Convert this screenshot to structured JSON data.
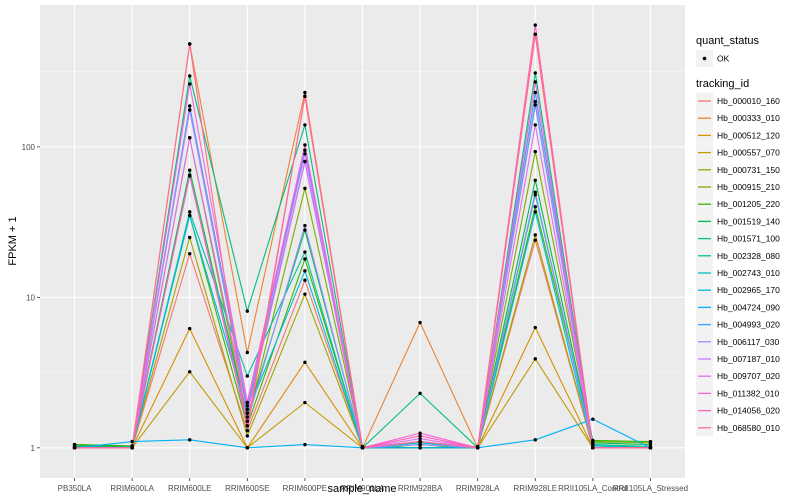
{
  "chart_data": {
    "type": "line",
    "title": "",
    "xlabel": "sample_name",
    "ylabel": "FPKM + 1",
    "y_scale": "log10",
    "ylim": [
      0.63,
      877
    ],
    "y_ticks": [
      1,
      10,
      100
    ],
    "y_tick_labels": [
      "1",
      "10",
      "100"
    ],
    "grid": true,
    "legend_placement": "right",
    "categories": [
      "PB350LA",
      "RRIM600LA",
      "RRIM600LE",
      "RRIM600SE",
      "RRIM600PE",
      "RRIM901LA",
      "RRIM928BA",
      "RRIM928LA",
      "RRIM928LE",
      "RRII105LA_Control",
      "RRII105LA_Stressed"
    ],
    "legend_shape": {
      "title": "quant_status",
      "entries": [
        "OK"
      ]
    },
    "legend_color_title": "tracking_id",
    "series": [
      {
        "name": "Hb_000010_160",
        "color": "#F8766D",
        "values": [
          1.0,
          1.0,
          19.5,
          1.3,
          13,
          1.0,
          1.05,
          1.0,
          24,
          1.0,
          1.0
        ]
      },
      {
        "name": "Hb_000333_010",
        "color": "#EA8331",
        "values": [
          1.0,
          1.0,
          483,
          4.3,
          230,
          1.0,
          6.8,
          1.0,
          560,
          1.0,
          1.0
        ]
      },
      {
        "name": "Hb_000512_120",
        "color": "#D89000",
        "values": [
          1.0,
          1.0,
          6.2,
          1.0,
          3.7,
          1.0,
          1.0,
          1.0,
          6.3,
          1.0,
          1.0
        ]
      },
      {
        "name": "Hb_000557_070",
        "color": "#C09B00",
        "values": [
          1.0,
          1.0,
          3.2,
          1.0,
          2.0,
          1.0,
          1.0,
          1.0,
          3.9,
          1.0,
          1.0
        ]
      },
      {
        "name": "Hb_000731_150",
        "color": "#A3A500",
        "values": [
          1.0,
          1.0,
          25,
          1.2,
          10.5,
          1.0,
          1.0,
          1.0,
          26,
          1.0,
          1.0
        ]
      },
      {
        "name": "Hb_000915_210",
        "color": "#7CAE00",
        "values": [
          1.05,
          1.02,
          115,
          1.5,
          53,
          1.02,
          1.0,
          1.02,
          93,
          1.1,
          1.08
        ]
      },
      {
        "name": "Hb_001205_220",
        "color": "#39B600",
        "values": [
          1.05,
          1.03,
          35,
          1.4,
          18,
          1.02,
          1.0,
          1.02,
          40,
          1.12,
          1.1
        ]
      },
      {
        "name": "Hb_001519_140",
        "color": "#00BB4E",
        "values": [
          1.03,
          1.02,
          70,
          1.6,
          28,
          1.02,
          1.0,
          1.02,
          60,
          1.08,
          1.05
        ]
      },
      {
        "name": "Hb_001571_100",
        "color": "#00BF7D",
        "values": [
          1.0,
          1.02,
          296,
          8.1,
          140,
          1.0,
          2.3,
          1.0,
          310,
          1.05,
          1.02
        ]
      },
      {
        "name": "Hb_002328_080",
        "color": "#00C1A3",
        "values": [
          1.02,
          1.0,
          37,
          3.0,
          20,
          1.0,
          1.05,
          1.0,
          48,
          1.05,
          1.0
        ]
      },
      {
        "name": "Hb_002743_010",
        "color": "#00BFC4",
        "values": [
          1.0,
          1.0,
          176,
          1.8,
          80,
          1.0,
          1.08,
          1.0,
          190,
          1.03,
          1.0
        ]
      },
      {
        "name": "Hb_002965_170",
        "color": "#00BAE0",
        "values": [
          1.0,
          1.0,
          35,
          1.7,
          15,
          1.0,
          1.1,
          1.0,
          37,
          1.0,
          1.0
        ]
      },
      {
        "name": "Hb_004724_090",
        "color": "#00B0F6",
        "values": [
          1.0,
          1.1,
          1.13,
          1.0,
          1.05,
          1.0,
          1.0,
          1.0,
          1.13,
          1.55,
          1.0
        ]
      },
      {
        "name": "Hb_004993_020",
        "color": "#35A2FF",
        "values": [
          1.0,
          1.0,
          187,
          2.0,
          95,
          1.0,
          1.1,
          1.0,
          230,
          1.0,
          1.0
        ]
      },
      {
        "name": "Hb_006117_030",
        "color": "#9590FF",
        "values": [
          1.0,
          1.0,
          64,
          1.5,
          30,
          1.0,
          1.05,
          1.0,
          50,
          1.0,
          1.0
        ]
      },
      {
        "name": "Hb_007187_010",
        "color": "#C77CFF",
        "values": [
          1.0,
          1.0,
          176,
          1.9,
          90,
          1.0,
          1.1,
          1.0,
          200,
          1.0,
          1.0
        ]
      },
      {
        "name": "Hb_009707_020",
        "color": "#E76BF3",
        "values": [
          1.0,
          1.0,
          115,
          1.7,
          80,
          1.0,
          1.15,
          1.0,
          140,
          1.0,
          1.0
        ]
      },
      {
        "name": "Hb_011382_010",
        "color": "#FA62DB",
        "values": [
          1.0,
          1.0,
          262,
          2.0,
          103,
          1.0,
          1.25,
          1.0,
          270,
          1.0,
          1.0
        ]
      },
      {
        "name": "Hb_014056_020",
        "color": "#FF62BC",
        "values": [
          1.0,
          1.0,
          65,
          1.4,
          217,
          1.0,
          1.2,
          1.0,
          645,
          1.0,
          1.0
        ]
      },
      {
        "name": "Hb_068580_010",
        "color": "#FF6C91",
        "values": [
          1.0,
          1.0,
          483,
          1.3,
          217,
          1.0,
          1.1,
          1.0,
          560,
          1.0,
          1.0
        ]
      }
    ]
  }
}
